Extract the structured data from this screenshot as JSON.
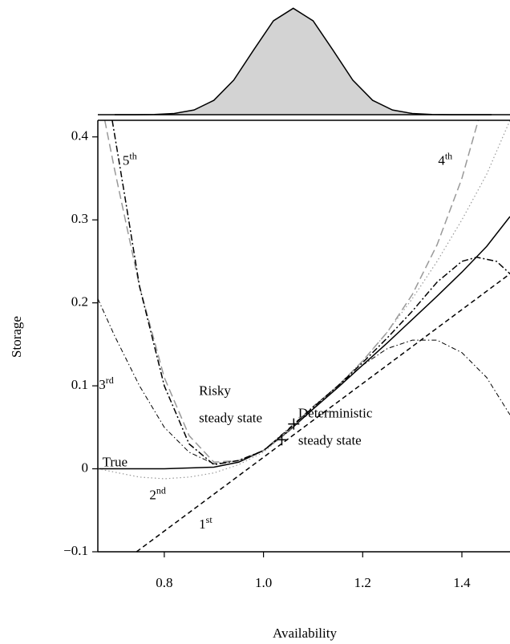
{
  "chart_data": [
    {
      "type": "density",
      "x": [
        0.7,
        0.74,
        0.78,
        0.82,
        0.86,
        0.9,
        0.94,
        0.98,
        1.02,
        1.06,
        1.1,
        1.14,
        1.18,
        1.22,
        1.26,
        1.3,
        1.34,
        1.38,
        1.42,
        1.46
      ],
      "values": [
        0,
        0.0003,
        0.0022,
        0.011,
        0.044,
        0.135,
        0.325,
        0.607,
        0.882,
        1,
        0.882,
        0.607,
        0.325,
        0.135,
        0.044,
        0.011,
        0.0022,
        0.0003,
        0,
        0
      ],
      "color": "#d3d3d3",
      "ylim": [
        0,
        1.04
      ]
    },
    {
      "type": "line",
      "xlabel": "Availability",
      "ylabel": "Storage",
      "xlim": [
        0.666,
        1.497
      ],
      "ylim": [
        -0.1,
        0.42
      ],
      "xticks": [
        0.8,
        {
          "value": 1,
          "label": "1.0"
        },
        1.2,
        1.4
      ],
      "yticks": [
        {
          "value": -0.1,
          "label": "−0.1"
        },
        0,
        0.1,
        0.2,
        0.3,
        0.4
      ],
      "series": [
        {
          "label": {
            "text": "True"
          },
          "color": "#000000",
          "dash": "none",
          "width": 1.5,
          "x": [
            0.666,
            0.8,
            0.9,
            0.95,
            1.0,
            1.05,
            1.1,
            1.15,
            1.2,
            1.25,
            1.3,
            1.35,
            1.4,
            1.45,
            1.497
          ],
          "values": [
            0,
            0,
            0.002,
            0.008,
            0.022,
            0.045,
            0.072,
            0.098,
            0.125,
            0.152,
            0.18,
            0.208,
            0.237,
            0.268,
            0.304
          ]
        },
        {
          "label": {
            "text": "1",
            "sup": "st"
          },
          "color": "#000000",
          "dash": "6,4",
          "width": 1.5,
          "x": [
            0.744,
            1.497
          ],
          "values": [
            -0.1,
            0.235
          ]
        },
        {
          "label": {
            "text": "2",
            "sup": "nd"
          },
          "color": "#999999",
          "dash": "1.5,3",
          "width": 1.2,
          "x": [
            0.666,
            0.75,
            0.8,
            0.85,
            0.9,
            0.95,
            1.0,
            1.05,
            1.1,
            1.15,
            1.2,
            1.25,
            1.3,
            1.35,
            1.4,
            1.45,
            1.497
          ],
          "values": [
            0,
            -0.01,
            -0.012,
            -0.01,
            -0.005,
            0.005,
            0.02,
            0.045,
            0.075,
            0.1,
            0.13,
            0.165,
            0.205,
            0.25,
            0.3,
            0.355,
            0.42
          ]
        },
        {
          "label": {
            "text": "3",
            "sup": "rd"
          },
          "color": "#000000",
          "dash": "6,3,1.5,3",
          "width": 1,
          "x": [
            0.666,
            0.7,
            0.75,
            0.8,
            0.85,
            0.9,
            0.95,
            1.0,
            1.05,
            1.1,
            1.15,
            1.2,
            1.25,
            1.3,
            1.35,
            1.4,
            1.45,
            1.497
          ],
          "values": [
            0.205,
            0.16,
            0.1,
            0.05,
            0.02,
            0.006,
            0.01,
            0.022,
            0.048,
            0.075,
            0.1,
            0.125,
            0.145,
            0.155,
            0.155,
            0.14,
            0.11,
            0.065
          ]
        },
        {
          "label": {
            "text": "4",
            "sup": "th"
          },
          "color": "#999999",
          "dash": "10,5",
          "width": 1.5,
          "x": [
            0.68,
            0.7,
            0.75,
            0.8,
            0.85,
            0.9,
            0.95,
            1.0,
            1.05,
            1.1,
            1.15,
            1.2,
            1.25,
            1.3,
            1.35,
            1.4,
            1.433
          ],
          "values": [
            0.42,
            0.36,
            0.22,
            0.11,
            0.04,
            0.008,
            0.01,
            0.022,
            0.046,
            0.074,
            0.1,
            0.13,
            0.165,
            0.21,
            0.27,
            0.35,
            0.42
          ]
        },
        {
          "label": {
            "text": "5",
            "sup": "th"
          },
          "color": "#000000",
          "dash": "8,3,2,3",
          "width": 1.5,
          "x": [
            0.695,
            0.72,
            0.75,
            0.8,
            0.85,
            0.9,
            0.95,
            1.0,
            1.05,
            1.1,
            1.15,
            1.2,
            1.25,
            1.3,
            1.35,
            1.4,
            1.43,
            1.47,
            1.497
          ],
          "values": [
            0.42,
            0.33,
            0.22,
            0.1,
            0.03,
            0.005,
            0.01,
            0.022,
            0.047,
            0.074,
            0.1,
            0.128,
            0.158,
            0.19,
            0.225,
            0.25,
            0.255,
            0.25,
            0.235
          ]
        }
      ],
      "points": [
        {
          "label": [
            "Deterministic",
            "steady state"
          ],
          "x": 1.037,
          "y": 0.035
        },
        {
          "label": [
            "Risky",
            "steady state"
          ],
          "x": 1.061,
          "y": 0.054
        }
      ]
    }
  ]
}
